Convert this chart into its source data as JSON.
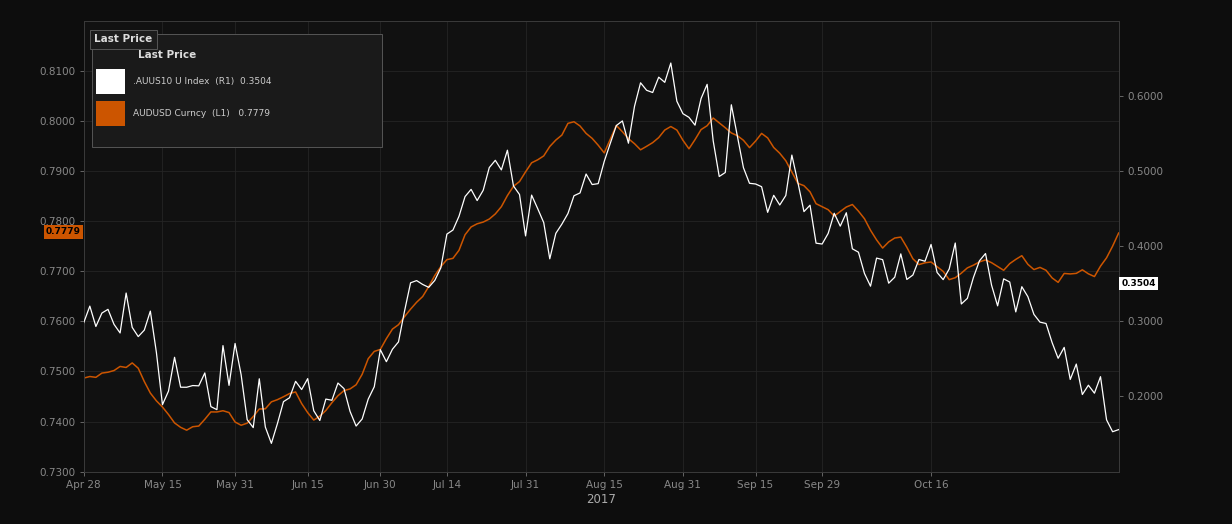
{
  "bg_color": "#0d0d0d",
  "plot_bg_color": "#111111",
  "grid_color": "#252525",
  "white_line_color": "#ffffff",
  "orange_line_color": "#cc5500",
  "left_ylim": [
    0.73,
    0.82
  ],
  "right_ylim": [
    0.1,
    0.7
  ],
  "left_yticks": [
    0.73,
    0.74,
    0.75,
    0.76,
    0.77,
    0.78,
    0.79,
    0.8,
    0.81
  ],
  "right_yticks": [
    0.2,
    0.3,
    0.4,
    0.5,
    0.6
  ],
  "xlabel_year": "2017",
  "xtick_labels": [
    "Apr 28",
    "May 15",
    "May 31",
    "Jun 15",
    "Jun 30",
    "Jul 14",
    "Jul 31",
    "Aug 15",
    "Aug 31",
    "Sep 15",
    "Sep 29",
    "Oct 16"
  ],
  "legend_title": "Last Price",
  "legend_line1": ".AUUS10 U Index  (R1)  0.3504",
  "legend_line2": "AUDUSD Curncy  (L1)   0.7779",
  "last_price_white": "0.3504",
  "last_price_orange": "0.7779"
}
